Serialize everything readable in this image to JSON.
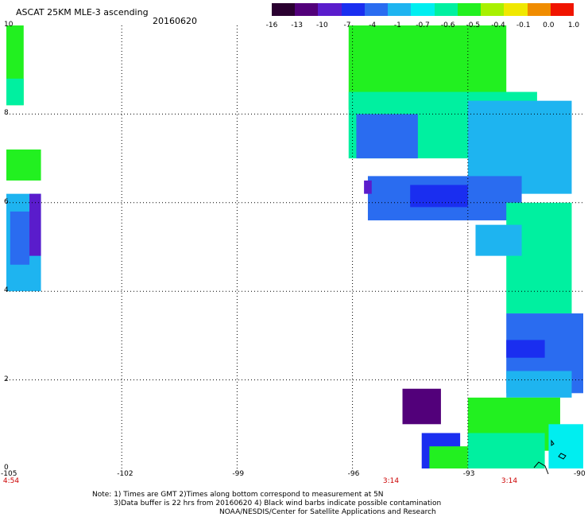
{
  "header": {
    "title": "ASCAT 25KM MLE-3 ascending",
    "date": "20160620"
  },
  "colorbar": {
    "labels": [
      "-16",
      "-13",
      "-10",
      "-7",
      "-4",
      "-1",
      "-0.7",
      "-0.6",
      "-0.5",
      "-0.4",
      "-0.1",
      "0.0",
      "1.0"
    ],
    "colors": [
      "#2a0030",
      "#52007a",
      "#5a1ccc",
      "#1a2ef0",
      "#2a6cf0",
      "#1eb4f0",
      "#00eef0",
      "#00f0a0",
      "#22f020",
      "#a8f000",
      "#f0e800",
      "#f08c00",
      "#f01400"
    ]
  },
  "axes": {
    "y_labels": [
      "10",
      "8",
      "6",
      "4",
      "2",
      "0"
    ],
    "x_labels": [
      "-105",
      "-102",
      "-99",
      "-96",
      "-93",
      "-90"
    ],
    "times": [
      "4:54",
      "3:14",
      "3:14"
    ]
  },
  "footer": {
    "line1": "Note: 1) Times are GMT 2)Times along bottom correspond to measurement at 5N",
    "line2": "3)Data buffer is 22 hrs from 20160620 4) Black wind barbs indicate possible contamination",
    "line3": "NOAA/NESDIS/Center for Satellite Applications and Research"
  },
  "map": {
    "lon_range": [
      -105,
      -90
    ],
    "lat_range": [
      0,
      10
    ],
    "regions": [
      {
        "name": "upper-left-strip",
        "color": "#22f020",
        "lon": [
          -105,
          -104.55
        ],
        "lat": [
          8.2,
          10
        ]
      },
      {
        "name": "upper-left-strip-fringe",
        "color": "#00f0a0",
        "lon": [
          -105,
          -104.55
        ],
        "lat": [
          8.2,
          8.8
        ]
      },
      {
        "name": "west-patch-green",
        "color": "#22f020",
        "lon": [
          -105,
          -104.1
        ],
        "lat": [
          6.5,
          7.2
        ]
      },
      {
        "name": "west-patch-cyan",
        "color": "#1eb4f0",
        "lon": [
          -105,
          -104.1
        ],
        "lat": [
          4.0,
          6.2
        ]
      },
      {
        "name": "west-patch-blue",
        "color": "#2a6cf0",
        "lon": [
          -104.9,
          -104.4
        ],
        "lat": [
          4.6,
          5.8
        ]
      },
      {
        "name": "west-patch-violet",
        "color": "#5a1ccc",
        "lon": [
          -104.4,
          -104.1
        ],
        "lat": [
          4.8,
          6.2
        ]
      },
      {
        "name": "north-swath-green",
        "color": "#22f020",
        "lon": [
          -96.1,
          -92.0
        ],
        "lat": [
          8.1,
          10
        ]
      },
      {
        "name": "north-swath-teal",
        "color": "#00f0a0",
        "lon": [
          -96.1,
          -91.2
        ],
        "lat": [
          7.0,
          8.5
        ]
      },
      {
        "name": "north-swath-blue",
        "color": "#2a6cf0",
        "lon": [
          -95.9,
          -94.3
        ],
        "lat": [
          7.0,
          8.0
        ]
      },
      {
        "name": "north-east-cyan",
        "color": "#1eb4f0",
        "lon": [
          -93.0,
          -90.3
        ],
        "lat": [
          6.2,
          8.3
        ]
      },
      {
        "name": "central-blue-band",
        "color": "#2a6cf0",
        "lon": [
          -95.6,
          -91.6
        ],
        "lat": [
          5.6,
          6.6
        ]
      },
      {
        "name": "central-dark-core",
        "color": "#1a2ef0",
        "lon": [
          -94.5,
          -93.0
        ],
        "lat": [
          5.9,
          6.4
        ]
      },
      {
        "name": "central-violet",
        "color": "#5a1ccc",
        "lon": [
          -95.7,
          -95.5
        ],
        "lat": [
          6.2,
          6.5
        ]
      },
      {
        "name": "east-green-column",
        "color": "#00f0a0",
        "lon": [
          -92.0,
          -90.3
        ],
        "lat": [
          3.5,
          6.0
        ]
      },
      {
        "name": "east-cyan-patch",
        "color": "#1eb4f0",
        "lon": [
          -92.8,
          -91.6
        ],
        "lat": [
          4.8,
          5.5
        ]
      },
      {
        "name": "south-east-blue",
        "color": "#2a6cf0",
        "lon": [
          -92.0,
          -90.0
        ],
        "lat": [
          1.7,
          3.5
        ]
      },
      {
        "name": "south-east-dark",
        "color": "#1a2ef0",
        "lon": [
          -92.0,
          -91.0
        ],
        "lat": [
          2.5,
          2.9
        ]
      },
      {
        "name": "south-east-cyan",
        "color": "#1eb4f0",
        "lon": [
          -92.0,
          -90.3
        ],
        "lat": [
          1.6,
          2.2
        ]
      },
      {
        "name": "south-green",
        "color": "#22f020",
        "lon": [
          -93.0,
          -90.6
        ],
        "lat": [
          0.4,
          1.6
        ]
      },
      {
        "name": "bottom-cyan",
        "color": "#00eef0",
        "lon": [
          -90.9,
          -90.0
        ],
        "lat": [
          0,
          1.0
        ]
      },
      {
        "name": "bottom-teal",
        "color": "#00f0a0",
        "lon": [
          -93.0,
          -91.0
        ],
        "lat": [
          0,
          0.8
        ]
      },
      {
        "name": "bottom-left-blue",
        "color": "#1a2ef0",
        "lon": [
          -94.2,
          -93.2
        ],
        "lat": [
          0,
          0.8
        ]
      },
      {
        "name": "bottom-left-green",
        "color": "#22f020",
        "lon": [
          -94.0,
          -93.0
        ],
        "lat": [
          0,
          0.5
        ]
      },
      {
        "name": "dark-purple-square",
        "color": "#52007a",
        "lon": [
          -94.7,
          -93.7
        ],
        "lat": [
          1.0,
          1.8
        ]
      }
    ]
  }
}
